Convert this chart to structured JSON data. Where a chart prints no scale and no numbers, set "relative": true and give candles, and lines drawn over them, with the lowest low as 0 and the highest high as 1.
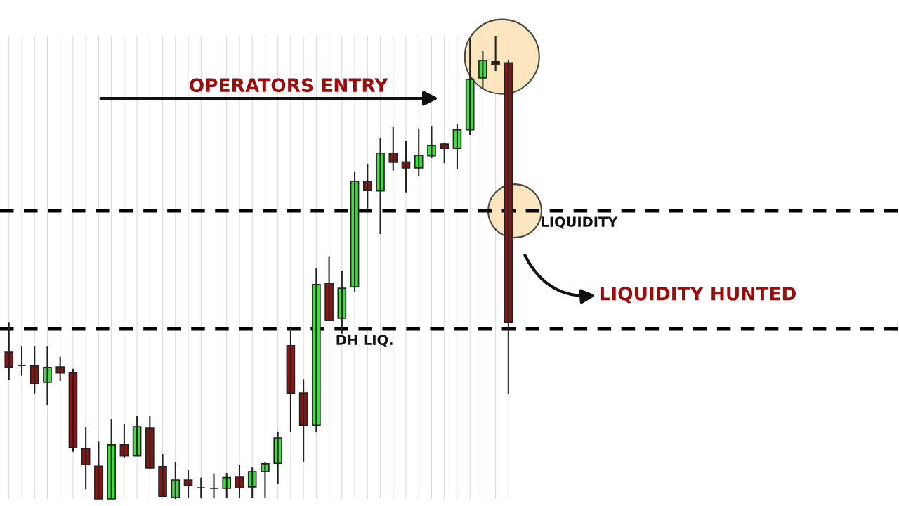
{
  "chart_data": {
    "type": "candlestick",
    "relative": true,
    "categories": [
      null,
      null,
      null,
      null,
      null,
      null,
      null,
      null,
      null,
      null,
      null,
      null,
      null,
      null,
      null,
      null,
      null,
      null,
      null,
      null,
      null,
      null,
      null,
      null,
      null,
      null,
      null,
      null,
      null,
      null,
      null,
      null,
      null,
      null,
      null,
      null,
      null,
      null,
      null,
      null
    ],
    "ohlc": [
      [
        0.317,
        0.382,
        0.258,
        0.285
      ],
      [
        0.288,
        0.329,
        0.266,
        0.288
      ],
      [
        0.287,
        0.329,
        0.228,
        0.249
      ],
      [
        0.252,
        0.329,
        0.203,
        0.284
      ],
      [
        0.285,
        0.307,
        0.255,
        0.272
      ],
      [
        0.272,
        0.281,
        0.102,
        0.111
      ],
      [
        0.109,
        0.156,
        0.021,
        0.074
      ],
      [
        0.071,
        0.124,
        0,
        0
      ],
      [
        0,
        0.173,
        0,
        0.117
      ],
      [
        0.117,
        0.161,
        0.088,
        0.093
      ],
      [
        0.093,
        0.179,
        0.093,
        0.156
      ],
      [
        0.153,
        0.179,
        0.064,
        0.067
      ],
      [
        0.07,
        0.097,
        0.006,
        0.006
      ],
      [
        0.003,
        0.079,
        0,
        0.041
      ],
      [
        0.041,
        0.062,
        0.002,
        0.029
      ],
      [
        0.024,
        0.046,
        0.002,
        0.024
      ],
      [
        0.023,
        0.055,
        0.002,
        0.023
      ],
      [
        0.023,
        0.056,
        0.002,
        0.046
      ],
      [
        0.047,
        0.074,
        0.002,
        0.024
      ],
      [
        0.026,
        0.068,
        0.002,
        0.059
      ],
      [
        0.059,
        0.08,
        0.002,
        0.076
      ],
      [
        0.077,
        0.146,
        0.033,
        0.132
      ],
      [
        0.331,
        0.372,
        0.144,
        0.229
      ],
      [
        0.229,
        0.259,
        0.08,
        0.159
      ],
      [
        0.159,
        0.498,
        0.144,
        0.463
      ],
      [
        0.466,
        0.524,
        0.384,
        0.385
      ],
      [
        0.39,
        0.492,
        0.357,
        0.455
      ],
      [
        0.458,
        0.706,
        0.448,
        0.686
      ],
      [
        0.686,
        0.724,
        0.627,
        0.666
      ],
      [
        0.665,
        0.78,
        0.572,
        0.747
      ],
      [
        0.747,
        0.803,
        0.709,
        0.727
      ],
      [
        0.728,
        0.774,
        0.662,
        0.715
      ],
      [
        0.715,
        0.8,
        0.698,
        0.742
      ],
      [
        0.741,
        0.804,
        0.736,
        0.763
      ],
      [
        0.766,
        0.768,
        0.725,
        0.757
      ],
      [
        0.757,
        0.81,
        0.712,
        0.797
      ],
      [
        0.797,
        0.994,
        0.786,
        0.906
      ],
      [
        0.909,
        0.968,
        0.886,
        0.947
      ],
      [
        0.944,
        1,
        0.924,
        0.939
      ],
      [
        0.942,
        0.947,
        0.226,
        0.382
      ]
    ],
    "colors": [
      "#8b1414",
      "#222222",
      "#8b1414",
      "#3ee03e",
      "#8b1414",
      "#8b1414",
      "#8b1414",
      "#8b1414",
      "#3ee03e",
      "#8b1414",
      "#3ee03e",
      "#8b1414",
      "#8b1414",
      "#3ee03e",
      "#8b1414",
      "#222222",
      "#222222",
      "#3ee03e",
      "#8b1414",
      "#3ee03e",
      "#3ee03e",
      "#3ee03e",
      "#8b1414",
      "#8b1414",
      "#3ee03e",
      "#8b1414",
      "#3ee03e",
      "#3ee03e",
      "#8b1414",
      "#3ee03e",
      "#8b1414",
      "#8b1414",
      "#3ee03e",
      "#3ee03e",
      "#8b1414",
      "#3ee03e",
      "#3ee03e",
      "#3ee03e",
      "#8b1414",
      "#8b1414"
    ],
    "ref_lines": [
      {
        "axis": "y",
        "value": 0.622,
        "label": "LIQUIDITY",
        "color": "#000000",
        "line_style": "dashed"
      },
      {
        "axis": "y",
        "value": 0.367,
        "label": "DH LIQ.",
        "color": "#000000",
        "line_style": "dashed"
      }
    ],
    "annotations": [
      "OPERATORS ENTRY",
      "LIQUIDITY HUNTED"
    ],
    "grid": "x"
  }
}
